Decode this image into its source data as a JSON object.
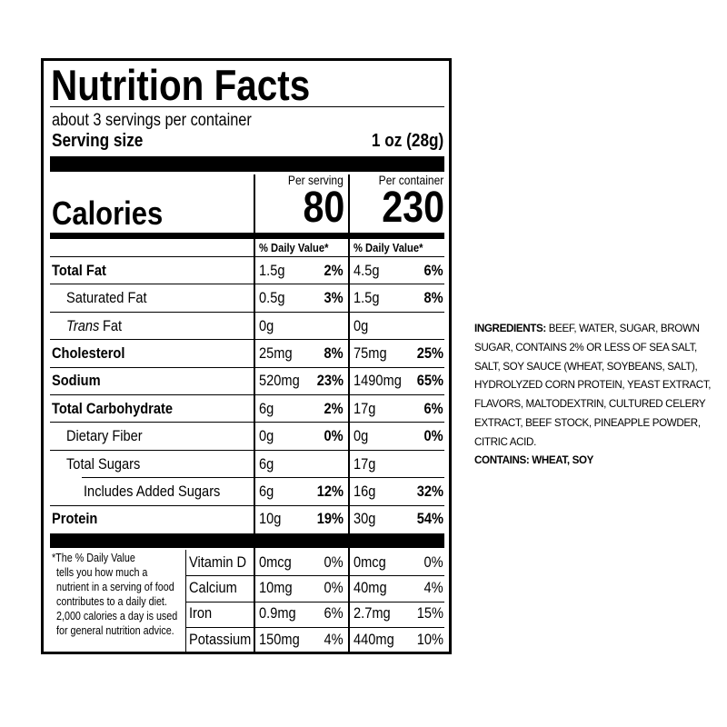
{
  "label": {
    "title": "Nutrition Facts",
    "servings": "about 3 servings per container",
    "serving_size_label": "Serving size",
    "serving_size": "1 oz (28g)",
    "per_serving": "Per serving",
    "per_container": "Per container",
    "calories_label": "Calories",
    "calories_serving": "80",
    "calories_container": "230",
    "dv_header": "% Daily Value*",
    "nutrients": [
      {
        "name": "Total Fat",
        "serving_amount": "1.5g",
        "serving_dv": "2%",
        "container_amount": "4.5g",
        "container_dv": "6%"
      },
      {
        "name": "Saturated Fat",
        "serving_amount": "0.5g",
        "serving_dv": "3%",
        "container_amount": "1.5g",
        "container_dv": "8%"
      },
      {
        "name_italic": "Trans",
        "name": "Fat",
        "serving_amount": "0g",
        "container_amount": "0g"
      },
      {
        "name": "Cholesterol",
        "serving_amount": "25mg",
        "serving_dv": "8%",
        "container_amount": "75mg",
        "container_dv": "25%"
      },
      {
        "name": "Sodium",
        "serving_amount": "520mg",
        "serving_dv": "23%",
        "container_amount": "1490mg",
        "container_dv": "65%"
      },
      {
        "name": "Total Carbohydrate",
        "serving_amount": "6g",
        "serving_dv": "2%",
        "container_amount": "17g",
        "container_dv": "6%"
      },
      {
        "name": "Dietary Fiber",
        "serving_amount": "0g",
        "serving_dv": "0%",
        "container_amount": "0g",
        "container_dv": "0%"
      },
      {
        "name": "Total Sugars",
        "serving_amount": "6g",
        "container_amount": "17g"
      },
      {
        "name": "Includes Added Sugars",
        "serving_amount": "6g",
        "serving_dv": "12%",
        "container_amount": "16g",
        "container_dv": "32%"
      },
      {
        "name": "Protein",
        "serving_amount": "10g",
        "serving_dv": "19%",
        "container_amount": "30g",
        "container_dv": "54%"
      }
    ],
    "footnote_lines": [
      "*The % Daily Value",
      "tells you how much a",
      "nutrient in a serving of food",
      "contributes to a daily diet.",
      "2,000 calories a day is used",
      "for general nutrition advice."
    ],
    "vitamins": [
      {
        "name": "Vitamin D",
        "serving_amount": "0mcg",
        "serving_dv": "0%",
        "container_amount": "0mcg",
        "container_dv": "0%"
      },
      {
        "name": "Calcium",
        "serving_amount": "10mg",
        "serving_dv": "0%",
        "container_amount": "40mg",
        "container_dv": "4%"
      },
      {
        "name": "Iron",
        "serving_amount": "0.9mg",
        "serving_dv": "6%",
        "container_amount": "2.7mg",
        "container_dv": "15%"
      },
      {
        "name": "Potassium",
        "serving_amount": "150mg",
        "serving_dv": "4%",
        "container_amount": "440mg",
        "container_dv": "10%"
      }
    ]
  },
  "ingredients": {
    "label": "INGREDIENTS:",
    "text": "BEEF, WATER, SUGAR, BROWN SUGAR, CONTAINS 2% OR LESS OF SEA SALT, SALT, SOY SAUCE (WHEAT, SOYBEANS, SALT), HYDROLYZED CORN PROTEIN, YEAST EXTRACT, FLAVORS, MALTODEXTRIN, CULTURED CELERY EXTRACT, BEEF STOCK, PINEAPPLE POWDER, CITRIC ACID.",
    "contains": "CONTAINS: WHEAT, SOY"
  }
}
